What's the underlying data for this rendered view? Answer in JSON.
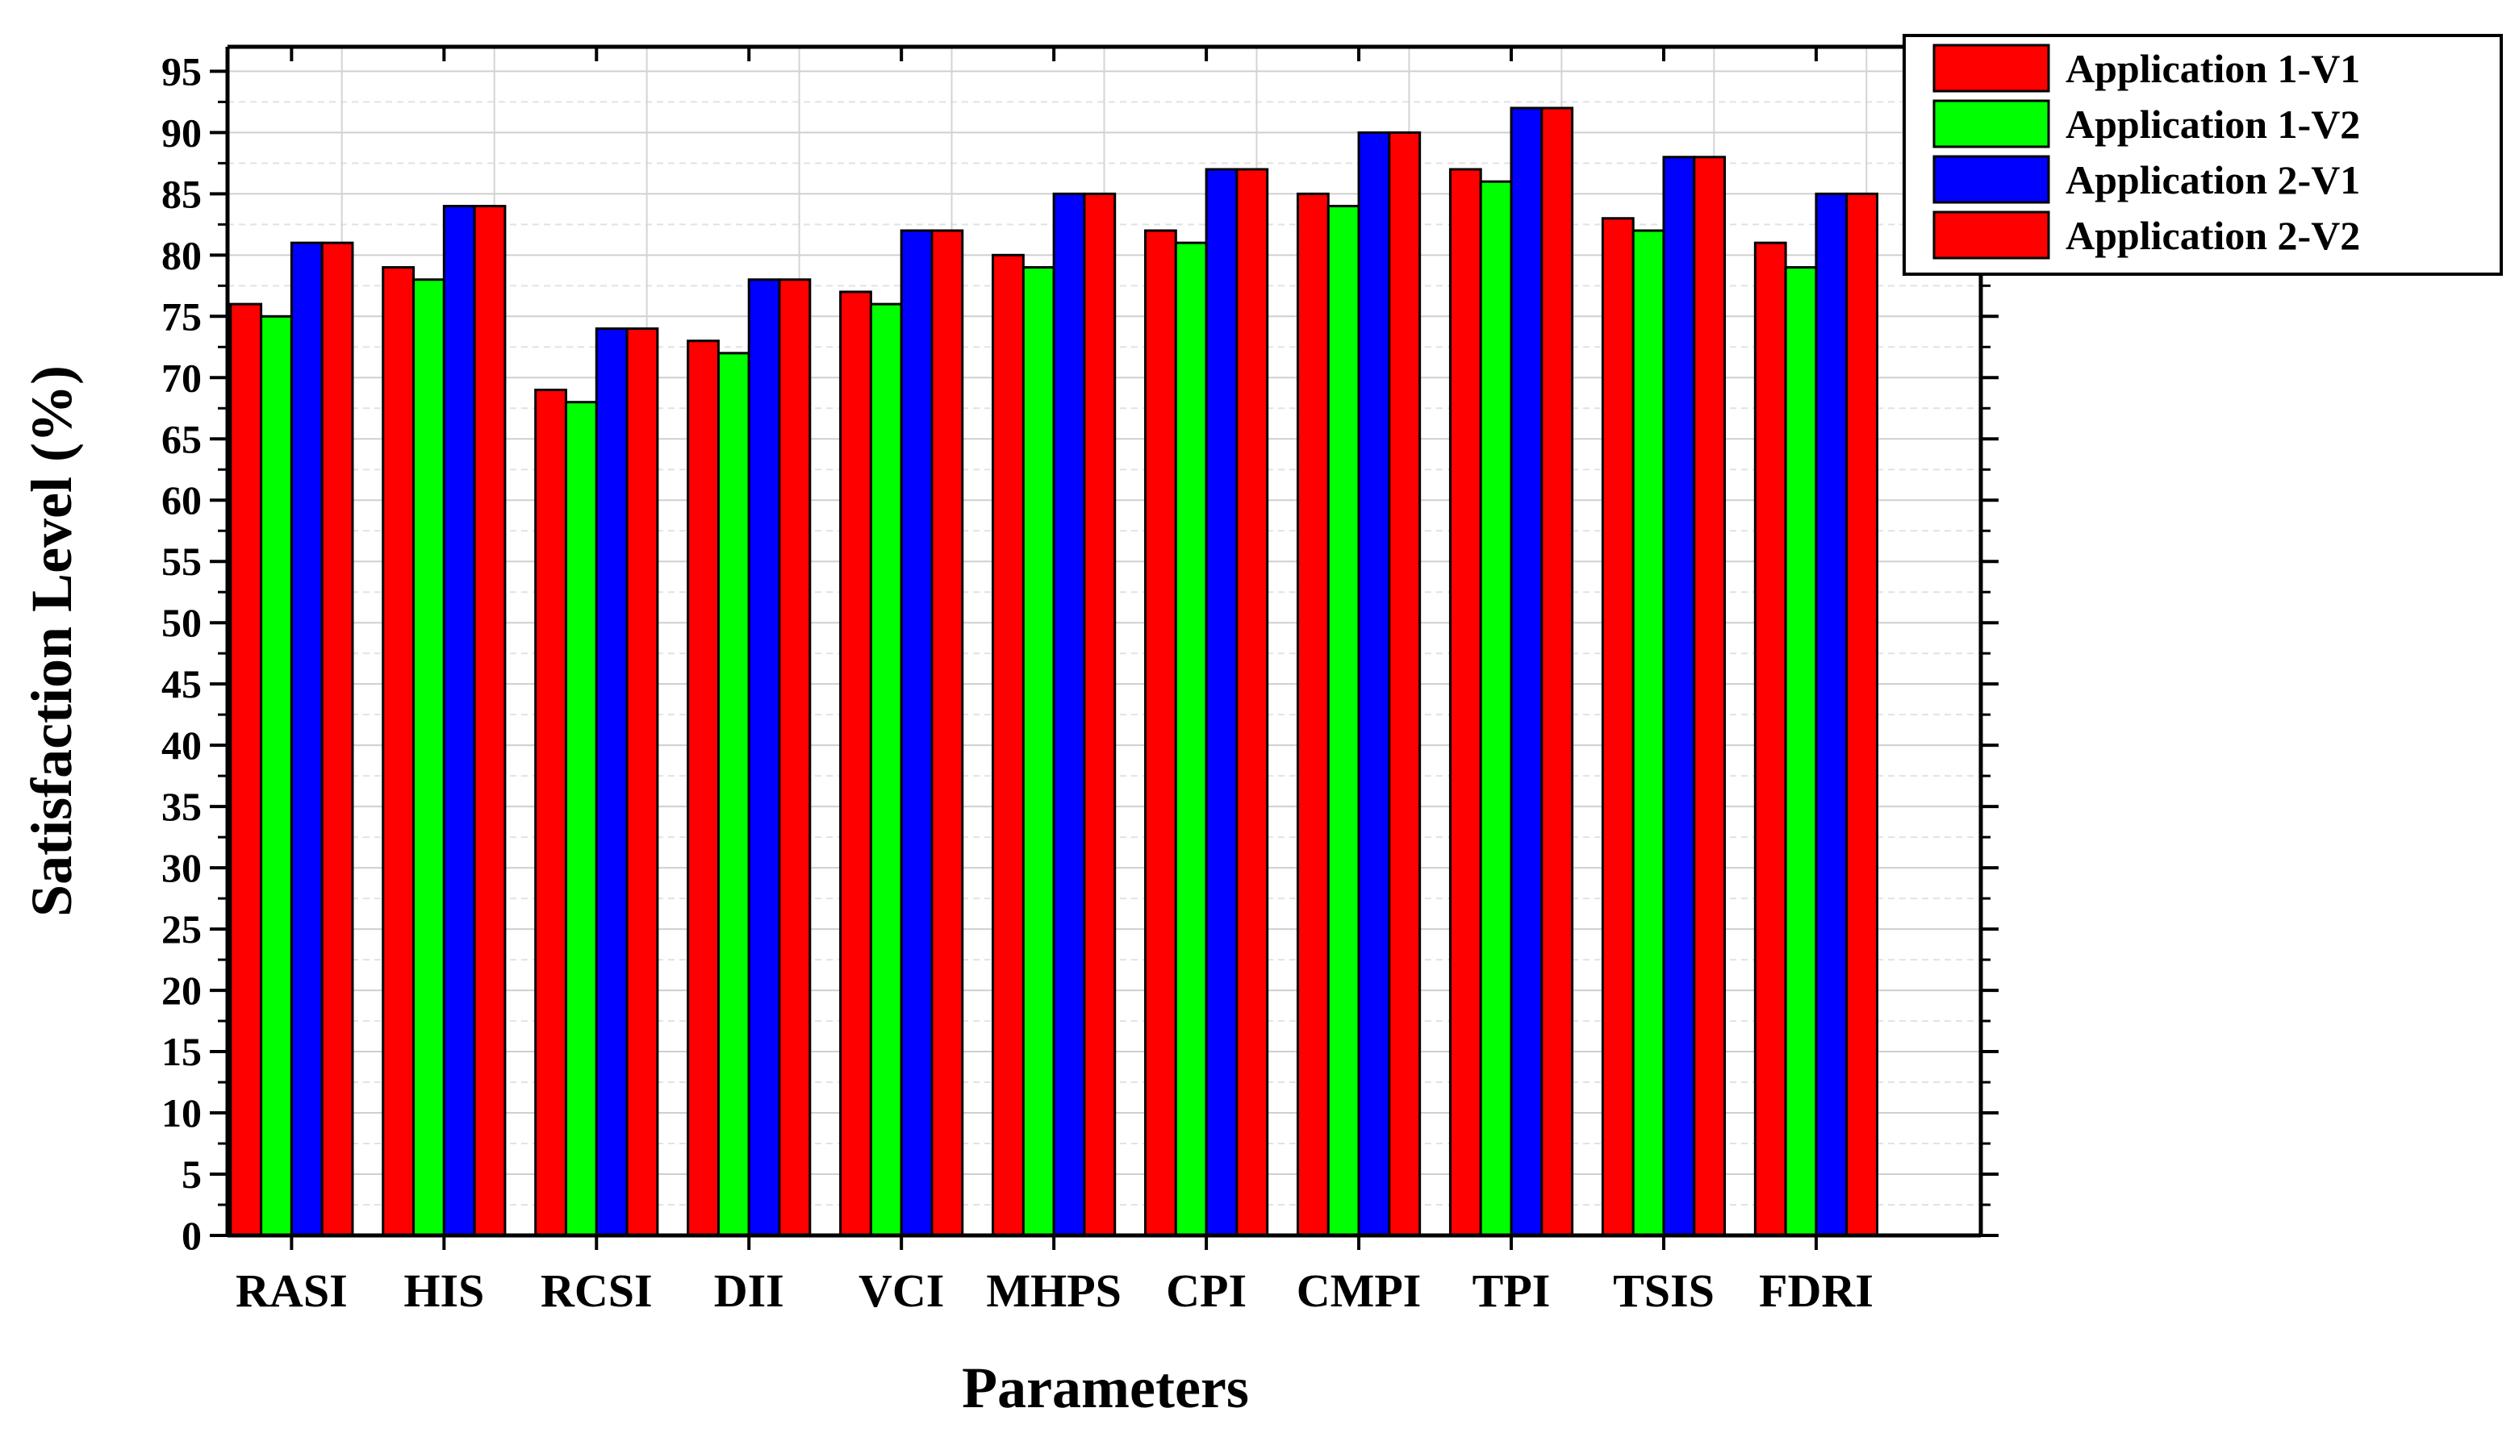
{
  "chart_data": {
    "type": "bar",
    "title": "",
    "xlabel": "Parameters",
    "ylabel": "Satisfaction Level (%)",
    "ylim": [
      0,
      97
    ],
    "yticks": [
      0,
      5,
      10,
      15,
      20,
      25,
      30,
      35,
      40,
      45,
      50,
      55,
      60,
      65,
      70,
      75,
      80,
      85,
      90,
      95
    ],
    "grid": true,
    "legend_position": "top-right",
    "categories": [
      "RASI",
      "HIS",
      "RCSI",
      "DII",
      "VCI",
      "MHPS",
      "CPI",
      "CMPI",
      "TPI",
      "TSIS",
      "FDRI"
    ],
    "series": [
      {
        "name": "Application 1-V1",
        "color": "#ff0000",
        "values": [
          76,
          79,
          69,
          73,
          77,
          80,
          82,
          85,
          87,
          83,
          81
        ]
      },
      {
        "name": "Application 1-V2",
        "color": "#00ff00",
        "values": [
          75,
          78,
          68,
          72,
          76,
          79,
          81,
          84,
          86,
          82,
          79
        ]
      },
      {
        "name": "Application 2-V1",
        "color": "#0000ff",
        "values": [
          81,
          84,
          74,
          78,
          82,
          85,
          87,
          90,
          92,
          88,
          85
        ]
      },
      {
        "name": "Application 2-V2",
        "color": "#ff0000",
        "values": [
          81,
          84,
          74,
          78,
          82,
          85,
          87,
          90,
          92,
          88,
          85
        ]
      }
    ]
  }
}
